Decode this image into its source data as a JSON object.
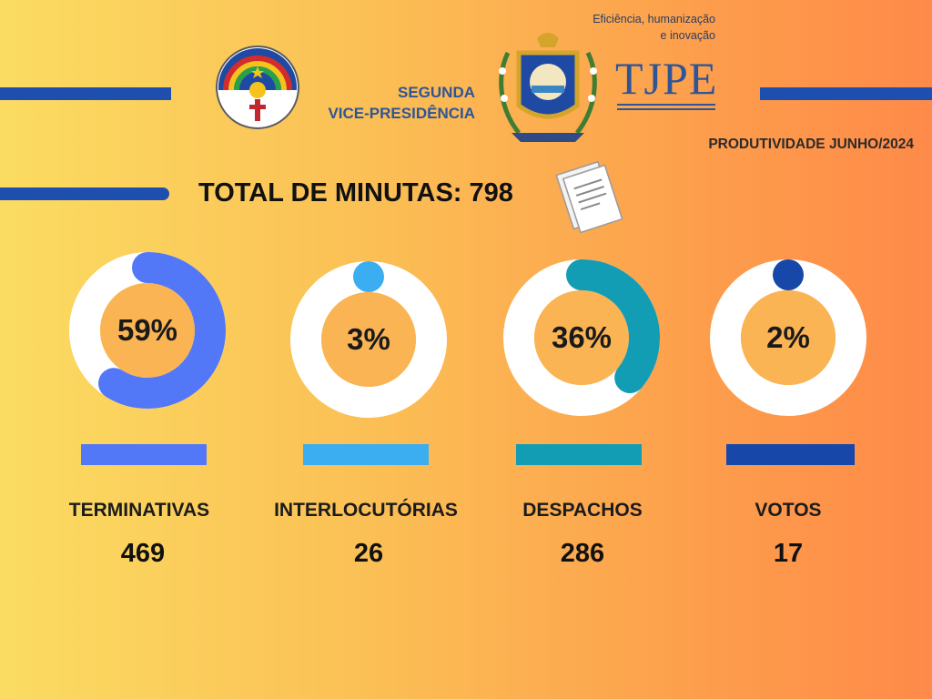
{
  "header": {
    "tagline_line1": "Eficiência, humanização",
    "tagline_line2": "e inovação",
    "vp_line1": "SEGUNDA",
    "vp_line2": "VICE-PRESIDÊNCIA",
    "tjpe_logo_text": "TJPE",
    "period": "PRODUTIVIDADE JUNHO/2024"
  },
  "total": {
    "label": "TOTAL DE MINUTAS: 798",
    "value": 798
  },
  "chart_data": {
    "type": "donut",
    "categories": [
      "TERMINATIVAS",
      "INTERLOCUTÓRIAS",
      "DESPACHOS",
      "VOTOS"
    ],
    "values": [
      469,
      26,
      286,
      17
    ],
    "percent_labels": [
      "59%",
      "3%",
      "36%",
      "2%"
    ],
    "percents": [
      59,
      3,
      36,
      2
    ],
    "value_labels": [
      "469",
      "26",
      "286",
      "17"
    ],
    "colors": [
      "#5277f7",
      "#3aaef0",
      "#129db4",
      "#1747a8"
    ],
    "track_color": "#ffffff",
    "center_color": "#fbb454"
  }
}
